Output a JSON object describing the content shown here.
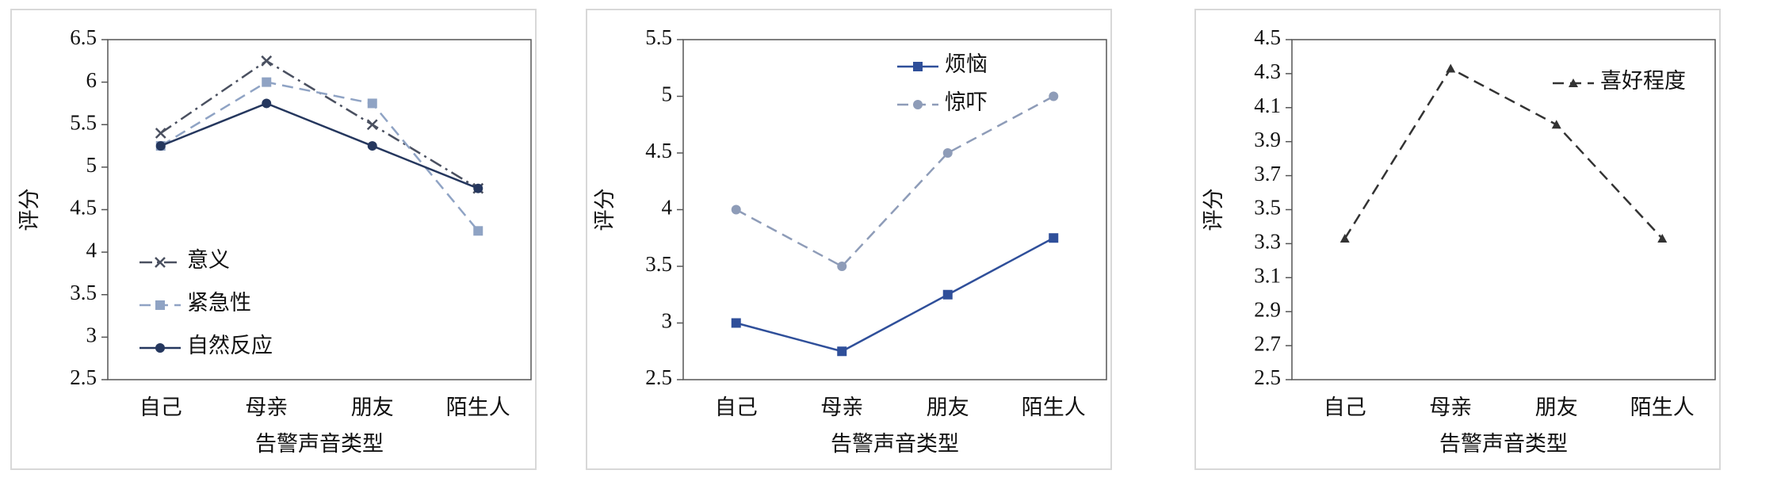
{
  "chart_data": [
    {
      "type": "line",
      "y_label": "评分",
      "x_label": "告警声音类型",
      "categories": [
        "自己",
        "母亲",
        "朋友",
        "陌生人"
      ],
      "ylim": [
        2.5,
        6.5
      ],
      "yticks": [
        2.5,
        3,
        3.5,
        4,
        4.5,
        5,
        5.5,
        6,
        6.5
      ],
      "legend": "lower left",
      "series": [
        {
          "name": "意义",
          "color": "#4a5060",
          "marker": "x",
          "dash": "dashdot",
          "values": [
            5.4,
            6.25,
            5.5,
            4.75
          ]
        },
        {
          "name": "紧急性",
          "color": "#8fa3c4",
          "marker": "square",
          "dash": "dashed",
          "values": [
            5.25,
            6.0,
            5.75,
            4.25
          ]
        },
        {
          "name": "自然反应",
          "color": "#25375e",
          "marker": "circle",
          "dash": "solid",
          "values": [
            5.25,
            5.75,
            5.25,
            4.75
          ]
        }
      ]
    },
    {
      "type": "line",
      "y_label": "评分",
      "x_label": "告警声音类型",
      "categories": [
        "自己",
        "母亲",
        "朋友",
        "陌生人"
      ],
      "ylim": [
        2.5,
        5.5
      ],
      "yticks": [
        2.5,
        3,
        3.5,
        4,
        4.5,
        5,
        5.5
      ],
      "legend": "upper center",
      "series": [
        {
          "name": "烦恼",
          "color": "#2f4f9a",
          "marker": "square",
          "dash": "solid",
          "values": [
            3,
            2.75,
            3.25,
            3.75
          ]
        },
        {
          "name": "惊吓",
          "color": "#8e9cb8",
          "marker": "circle",
          "dash": "dashed",
          "values": [
            4,
            3.5,
            4.5,
            5
          ]
        }
      ]
    },
    {
      "type": "line",
      "y_label": "评分",
      "x_label": "告警声音类型",
      "categories": [
        "自己",
        "母亲",
        "朋友",
        "陌生人"
      ],
      "ylim": [
        2.5,
        4.5
      ],
      "yticks": [
        2.5,
        2.7,
        2.9,
        3.1,
        3.3,
        3.5,
        3.7,
        3.9,
        4.1,
        4.3,
        4.5
      ],
      "legend": "upper right",
      "series": [
        {
          "name": "喜好程度",
          "color": "#333333",
          "marker": "triangle",
          "dash": "dashed",
          "values": [
            3.33,
            4.33,
            4.0,
            3.33
          ]
        }
      ]
    }
  ]
}
